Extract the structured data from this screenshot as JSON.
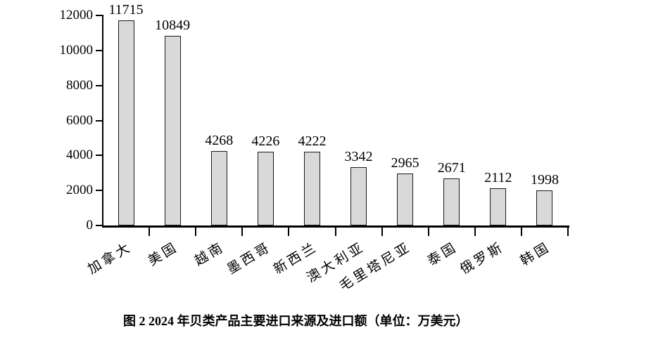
{
  "caption": "图 2  2024 年贝类产品主要进口来源及进口额（单位：万美元）",
  "chart_data": {
    "type": "bar",
    "title": "图2 2024年贝类产品主要进口来源及进口额",
    "unit_label": "万美元",
    "categories": [
      "加拿大",
      "美国",
      "越南",
      "墨西哥",
      "新西兰",
      "澳大利亚",
      "毛里塔尼亚",
      "泰国",
      "俄罗斯",
      "韩国"
    ],
    "values": [
      11715,
      10849,
      4268,
      4226,
      4222,
      3342,
      2965,
      2671,
      2112,
      1998
    ],
    "xlabel": "",
    "ylabel": "",
    "ylim": [
      0,
      12000
    ],
    "yticks": [
      0,
      2000,
      4000,
      6000,
      8000,
      10000,
      12000
    ],
    "grid": false,
    "legend": "none",
    "value_labels": true,
    "x_label_rotation_deg": 31,
    "bar_fill": "#d9d9d9",
    "bar_border": "#1a1a1a",
    "axis_color": "#000000"
  }
}
